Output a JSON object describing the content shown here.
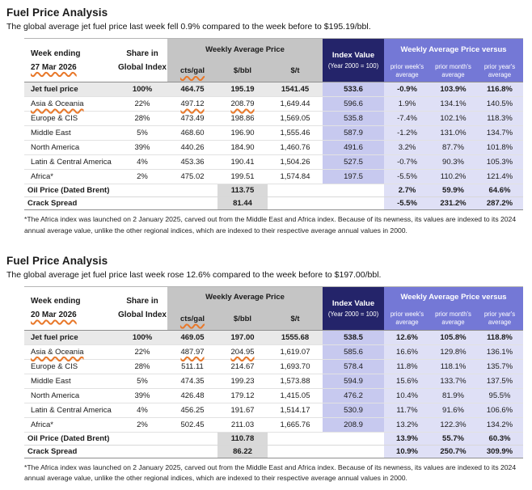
{
  "colors": {
    "orange_marker": "#e8782a",
    "index_header_navy": "#24246a",
    "versus_header_purple": "#7478d6",
    "index_cell_lavender": "#c7c9ef",
    "versus_cell_lavender": "#dfe0f6",
    "price_band_grey": "#c5c5c5",
    "jet_row_grey": "#e9e9e9",
    "summary_box_grey": "#d9d9d9"
  },
  "tables": [
    {
      "title": "Fuel Price Analysis",
      "subtitle": "The global average jet fuel price last week fell 0.9% compared to the week before to $195.19/bbl.",
      "header": {
        "week_label": "Week ending",
        "week_date": "27 Mar 2026",
        "share_line1": "Share in",
        "share_line2": "Global Index",
        "wap_label": "Weekly Average Price",
        "units": [
          "cts/gal",
          "$/bbl",
          "$/t"
        ],
        "index_label": "Index Value",
        "index_sublabel": "(Year 2000 = 100)",
        "versus_label": "Weekly Average Price versus",
        "versus_units": [
          "prior week's average",
          "prior month's average",
          "prior year's average"
        ]
      },
      "rows": [
        {
          "label": "Jet fuel price",
          "share": "100%",
          "cts": "464.75",
          "bbl": "195.19",
          "t": "1541.45",
          "index": "533.6",
          "versus": [
            "-0.9%",
            "103.9%",
            "116.8%"
          ],
          "bold": true,
          "marked": false
        },
        {
          "label": "Asia & Oceania",
          "share": "22%",
          "cts": "497.12",
          "bbl": "208.79",
          "t": "1,649.44",
          "index": "596.6",
          "versus": [
            "1.9%",
            "134.1%",
            "140.5%"
          ],
          "bold": false,
          "marked": true
        },
        {
          "label": "Europe & CIS",
          "share": "28%",
          "cts": "473.49",
          "bbl": "198.86",
          "t": "1,569.05",
          "index": "535.8",
          "versus": [
            "-7.4%",
            "102.1%",
            "118.3%"
          ],
          "bold": false,
          "marked": false
        },
        {
          "label": "Middle East",
          "share": "5%",
          "cts": "468.60",
          "bbl": "196.90",
          "t": "1,555.46",
          "index": "587.9",
          "versus": [
            "-1.2%",
            "131.0%",
            "134.7%"
          ],
          "bold": false,
          "marked": false
        },
        {
          "label": "North America",
          "share": "39%",
          "cts": "440.26",
          "bbl": "184.90",
          "t": "1,460.76",
          "index": "491.6",
          "versus": [
            "3.2%",
            "87.7%",
            "101.8%"
          ],
          "bold": false,
          "marked": false
        },
        {
          "label": "Latin & Central America",
          "share": "4%",
          "cts": "453.36",
          "bbl": "190.41",
          "t": "1,504.26",
          "index": "527.5",
          "versus": [
            "-0.7%",
            "90.3%",
            "105.3%"
          ],
          "bold": false,
          "marked": false
        },
        {
          "label": "Africa*",
          "share": "2%",
          "cts": "475.02",
          "bbl": "199.51",
          "t": "1,574.84",
          "index": "197.5",
          "versus": [
            "-5.5%",
            "110.2%",
            "121.4%"
          ],
          "bold": false,
          "marked": false
        }
      ],
      "summary_rows": [
        {
          "label": "Oil Price (Dated Brent)",
          "bbl": "113.75",
          "versus": [
            "2.7%",
            "59.9%",
            "64.6%"
          ]
        },
        {
          "label": "Crack Spread",
          "bbl": "81.44",
          "versus": [
            "-5.5%",
            "231.2%",
            "287.2%"
          ]
        }
      ],
      "footnote": "*The Africa index was launched on 2 January 2025, carved out from the Middle East and Africa index. Because of its newness, its values are indexed to its 2024 annual average value, unlike the other regional indices, which are indexed to their respective average annual values in 2000."
    },
    {
      "title": "Fuel Price Analysis",
      "subtitle": "The global average jet fuel price last week rose 12.6% compared to the week before to $197.00/bbl.",
      "header": {
        "week_label": "Week ending",
        "week_date": "20 Mar 2026",
        "share_line1": "Share in",
        "share_line2": "Global Index",
        "wap_label": "Weekly Average Price",
        "units": [
          "cts/gal",
          "$/bbl",
          "$/t"
        ],
        "index_label": "Index Value",
        "index_sublabel": "(Year 2000 = 100)",
        "versus_label": "Weekly Average Price versus",
        "versus_units": [
          "prior week's average",
          "prior month's average",
          "prior year's average"
        ]
      },
      "rows": [
        {
          "label": "Jet fuel price",
          "share": "100%",
          "cts": "469.05",
          "bbl": "197.00",
          "t": "1555.68",
          "index": "538.5",
          "versus": [
            "12.6%",
            "105.8%",
            "118.8%"
          ],
          "bold": true,
          "marked": false
        },
        {
          "label": "Asia & Oceania",
          "share": "22%",
          "cts": "487.97",
          "bbl": "204.95",
          "t": "1,619.07",
          "index": "585.6",
          "versus": [
            "16.6%",
            "129.8%",
            "136.1%"
          ],
          "bold": false,
          "marked": true
        },
        {
          "label": "Europe & CIS",
          "share": "28%",
          "cts": "511.11",
          "bbl": "214.67",
          "t": "1,693.70",
          "index": "578.4",
          "versus": [
            "11.8%",
            "118.1%",
            "135.7%"
          ],
          "bold": false,
          "marked": false
        },
        {
          "label": "Middle East",
          "share": "5%",
          "cts": "474.35",
          "bbl": "199.23",
          "t": "1,573.88",
          "index": "594.9",
          "versus": [
            "15.6%",
            "133.7%",
            "137.5%"
          ],
          "bold": false,
          "marked": false
        },
        {
          "label": "North America",
          "share": "39%",
          "cts": "426.48",
          "bbl": "179.12",
          "t": "1,415.05",
          "index": "476.2",
          "versus": [
            "10.4%",
            "81.9%",
            "95.5%"
          ],
          "bold": false,
          "marked": false
        },
        {
          "label": "Latin & Central America",
          "share": "4%",
          "cts": "456.25",
          "bbl": "191.67",
          "t": "1,514.17",
          "index": "530.9",
          "versus": [
            "11.7%",
            "91.6%",
            "106.6%"
          ],
          "bold": false,
          "marked": false
        },
        {
          "label": "Africa*",
          "share": "2%",
          "cts": "502.45",
          "bbl": "211.03",
          "t": "1,665.76",
          "index": "208.9",
          "versus": [
            "13.2%",
            "122.3%",
            "134.2%"
          ],
          "bold": false,
          "marked": false
        }
      ],
      "summary_rows": [
        {
          "label": "Oil Price (Dated Brent)",
          "bbl": "110.78",
          "versus": [
            "13.9%",
            "55.7%",
            "60.3%"
          ]
        },
        {
          "label": "Crack Spread",
          "bbl": "86.22",
          "versus": [
            "10.9%",
            "250.7%",
            "309.9%"
          ]
        }
      ],
      "footnote": "*The Africa index was launched on 2 January 2025, carved out from the Middle East and Africa index. Because of its newness, its values are indexed to its 2024 annual average value, unlike the other regional indices, which are indexed to their respective average annual values in 2000."
    }
  ]
}
